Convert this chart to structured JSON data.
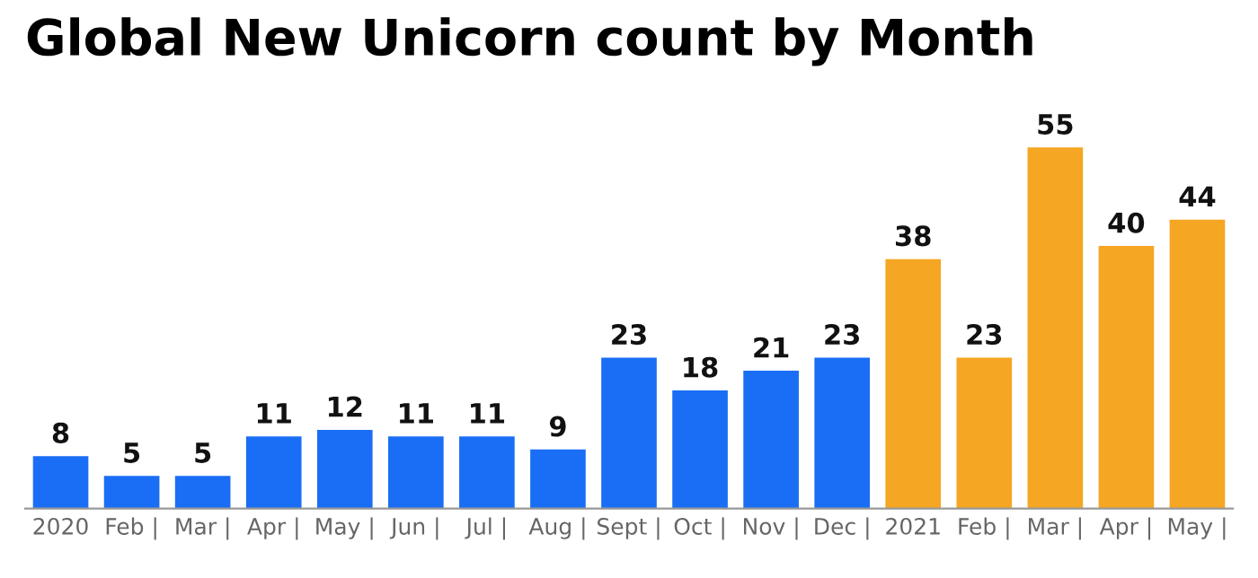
{
  "chart_data": {
    "type": "bar",
    "title": "Global New Unicorn count by Month",
    "categories": [
      "2020",
      "Feb |",
      "Mar |",
      "Apr |",
      "May |",
      "Jun |",
      "Jul |",
      "Aug |",
      "Sept |",
      "Oct |",
      "Nov |",
      "Dec |",
      "2021",
      "Feb |",
      "Mar |",
      "Apr |",
      "May |"
    ],
    "values": [
      8,
      5,
      5,
      11,
      12,
      11,
      11,
      9,
      23,
      18,
      21,
      23,
      38,
      23,
      55,
      40,
      44
    ],
    "colors": [
      "#1a6ef5",
      "#1a6ef5",
      "#1a6ef5",
      "#1a6ef5",
      "#1a6ef5",
      "#1a6ef5",
      "#1a6ef5",
      "#1a6ef5",
      "#1a6ef5",
      "#1a6ef5",
      "#1a6ef5",
      "#1a6ef5",
      "#f5a623",
      "#f5a623",
      "#f5a623",
      "#f5a623",
      "#f5a623"
    ],
    "data_labels": true,
    "grid": false,
    "legend": false
  }
}
